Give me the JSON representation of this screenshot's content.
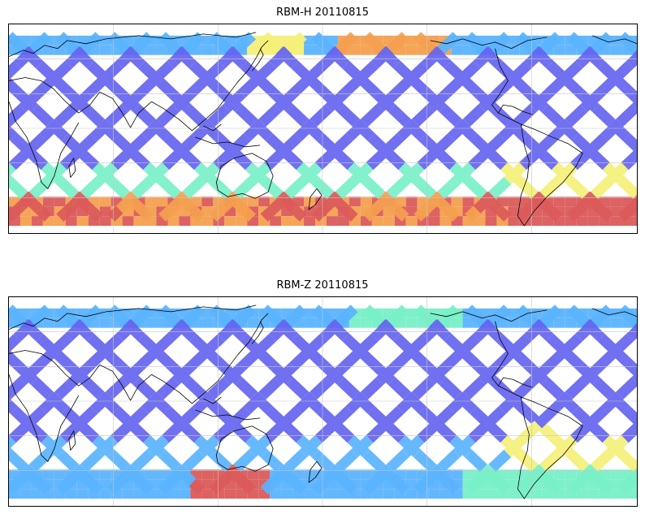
{
  "figure": {
    "panels": [
      {
        "id": "top",
        "title": "RBM-H 20110815",
        "field": "RBM-H",
        "date": "20110815"
      },
      {
        "id": "bottom",
        "title": "RBM-Z 20110815",
        "field": "RBM-Z",
        "date": "20110815"
      }
    ]
  },
  "colors": {
    "low": "#6464f0",
    "mid_low": "#5ab4ff",
    "mid": "#78f0c8",
    "mid_high": "#f5f078",
    "high": "#f5a050",
    "max": "#dc5a5a",
    "coast": "#000000",
    "grid": "#c8c8c8"
  }
}
